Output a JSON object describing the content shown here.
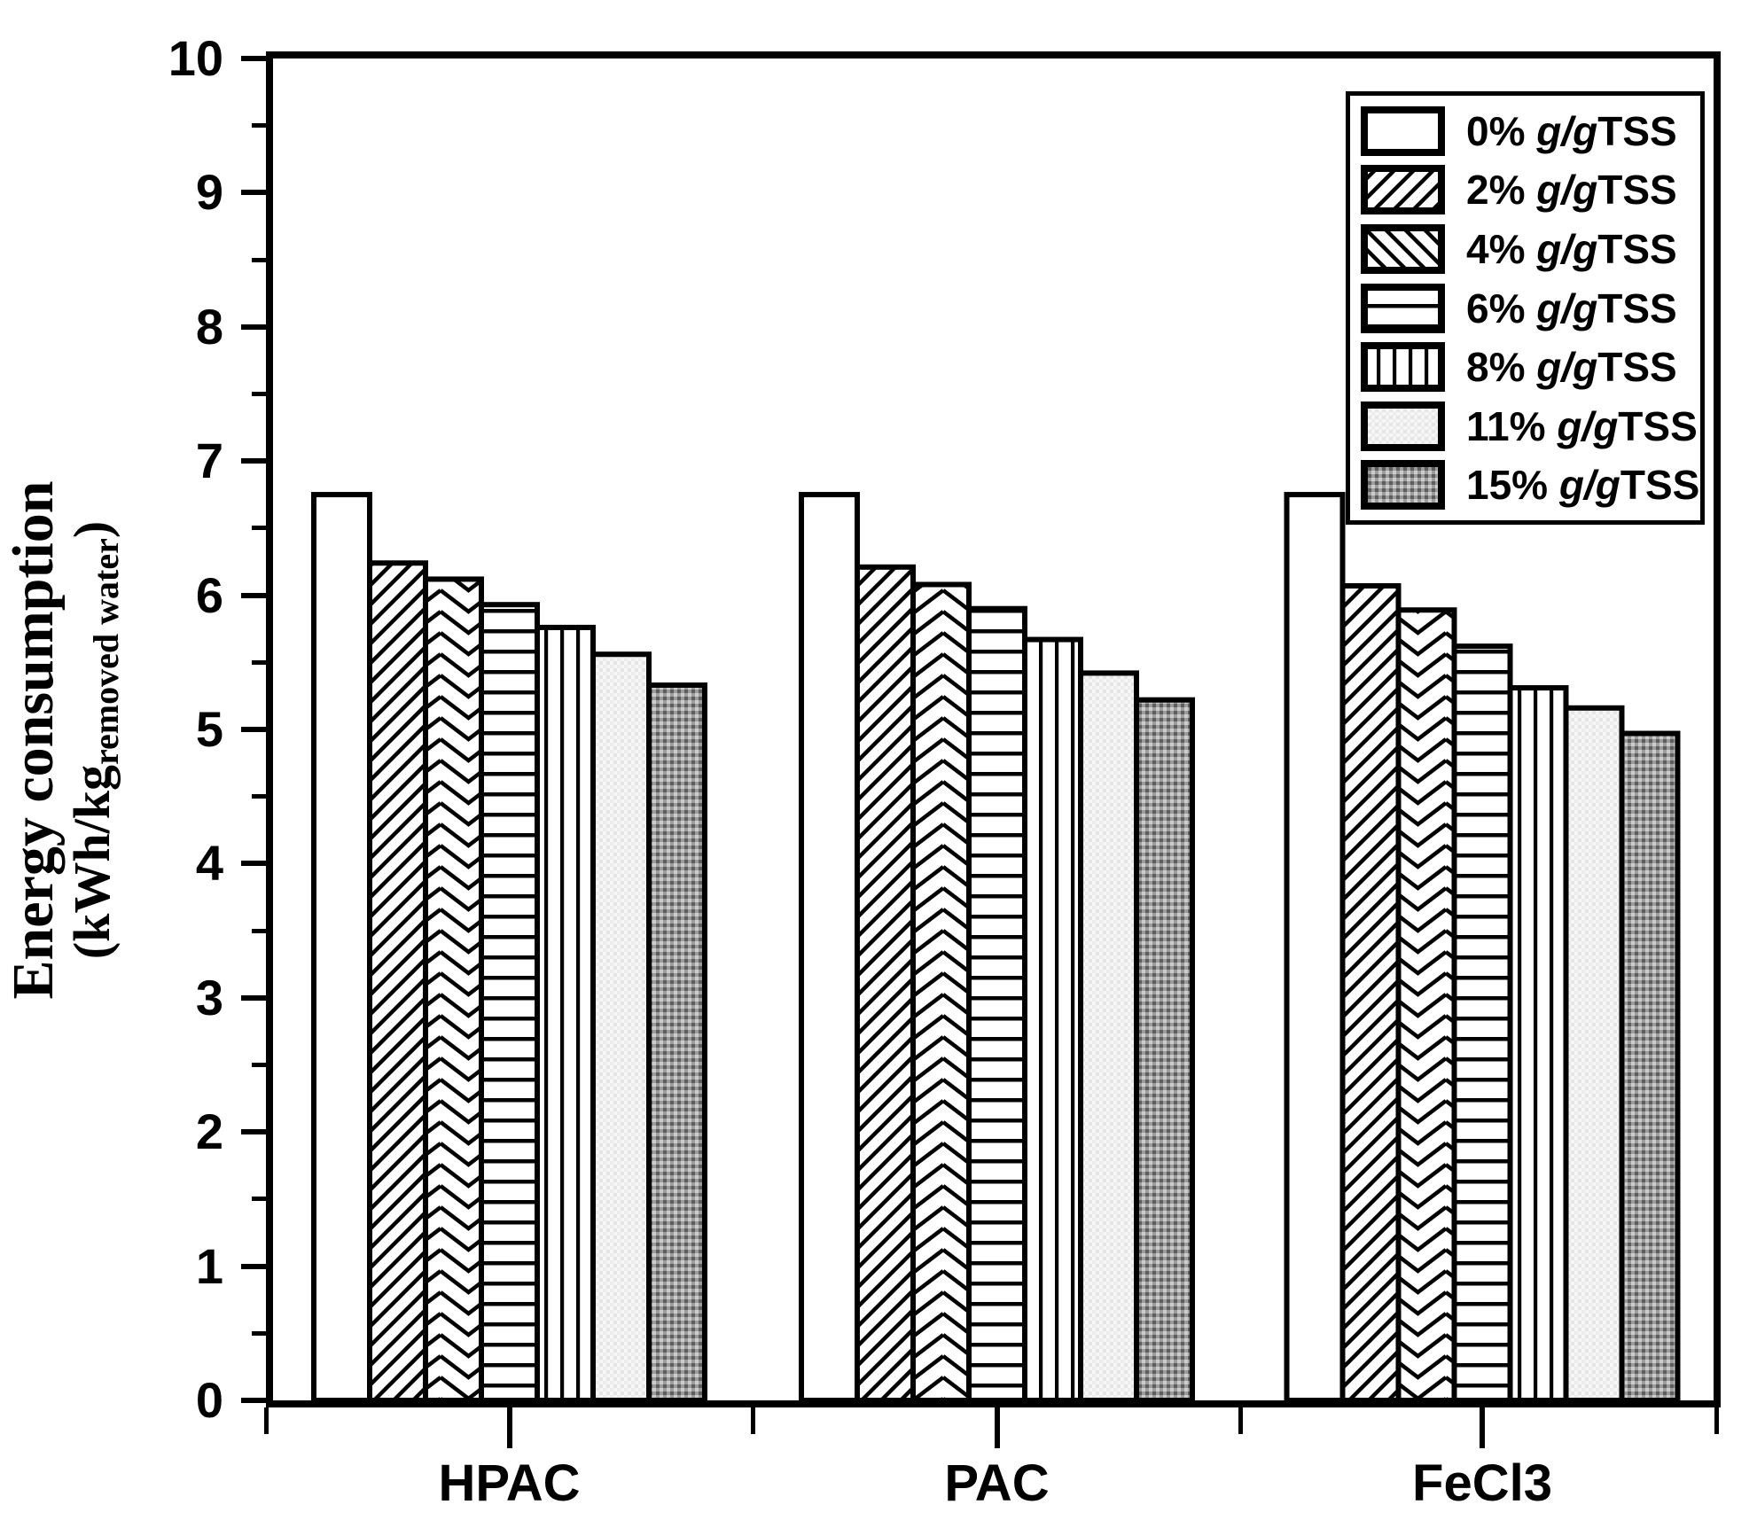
{
  "figure": {
    "background": "#ffffff",
    "ink_color": "#000000"
  },
  "y_axis": {
    "title_line1": "Energy consumption",
    "title_line2_prefix": "(kWh/kg",
    "title_line2_subscript": "removed water",
    "title_line2_suffix": ")",
    "min": 0,
    "max": 10,
    "major_step": 1,
    "minor_step": 0.5,
    "tick_labels": [
      "0",
      "1",
      "2",
      "3",
      "4",
      "5",
      "6",
      "7",
      "8",
      "9",
      "10"
    ]
  },
  "x_axis": {
    "categories": [
      "HPAC",
      "PAC",
      "FeCl3"
    ]
  },
  "legend": {
    "entries": [
      {
        "pct": "0% ",
        "unit_italic": "g/g",
        "unit": "TSS",
        "pattern": "none"
      },
      {
        "pct": "2% ",
        "unit_italic": "g/g",
        "unit": "TSS",
        "pattern": "diagonal-forward"
      },
      {
        "pct": "4% ",
        "unit_italic": "g/g",
        "unit": "TSS",
        "pattern": "diagonal-backward"
      },
      {
        "pct": "6% ",
        "unit_italic": "g/g",
        "unit": "TSS",
        "pattern": "horizontal-lines"
      },
      {
        "pct": "8% ",
        "unit_italic": "g/g",
        "unit": "TSS",
        "pattern": "vertical-lines"
      },
      {
        "pct": "11% ",
        "unit_italic": "g/g",
        "unit": "TSS",
        "pattern": "dots-light"
      },
      {
        "pct": "15% ",
        "unit_italic": "g/g",
        "unit": "TSS",
        "pattern": "dots-dark"
      }
    ]
  },
  "chart_data": {
    "type": "bar",
    "title": "",
    "categories": [
      "HPAC",
      "PAC",
      "FeCl3"
    ],
    "xlabel": "",
    "ylabel": "Energy consumption (kWh/kg removed water)",
    "ylim": [
      0,
      10
    ],
    "grid": false,
    "legend_position": "top-right",
    "bar_fill_colors": {
      "light_dot_bg": "#f6f6f6",
      "dark_dot_bg": "#9c9c9c"
    },
    "series": [
      {
        "name": "0% g/gTSS",
        "pattern": "none",
        "bar_pattern": "none",
        "values": [
          6.75,
          6.75,
          6.75
        ]
      },
      {
        "name": "2% g/gTSS",
        "pattern": "diagonal-forward",
        "bar_pattern": "diagonal-forward",
        "values": [
          6.24,
          6.21,
          6.07
        ]
      },
      {
        "name": "4% g/gTSS",
        "pattern": "diagonal-backward",
        "bar_pattern": "chevron-down",
        "values": [
          6.12,
          6.08,
          5.89
        ]
      },
      {
        "name": "6% g/gTSS",
        "pattern": "horizontal-lines",
        "bar_pattern": "horizontal-lines",
        "values": [
          5.93,
          5.9,
          5.62
        ]
      },
      {
        "name": "8% g/gTSS",
        "pattern": "vertical-lines",
        "bar_pattern": "vertical-lines",
        "values": [
          5.76,
          5.67,
          5.31
        ]
      },
      {
        "name": "11% g/gTSS",
        "pattern": "dots-light",
        "bar_pattern": "dots-light",
        "values": [
          5.56,
          5.42,
          5.16
        ]
      },
      {
        "name": "15% g/gTSS",
        "pattern": "dots-dark",
        "bar_pattern": "dots-dark",
        "values": [
          5.33,
          5.22,
          4.97
        ]
      }
    ]
  }
}
